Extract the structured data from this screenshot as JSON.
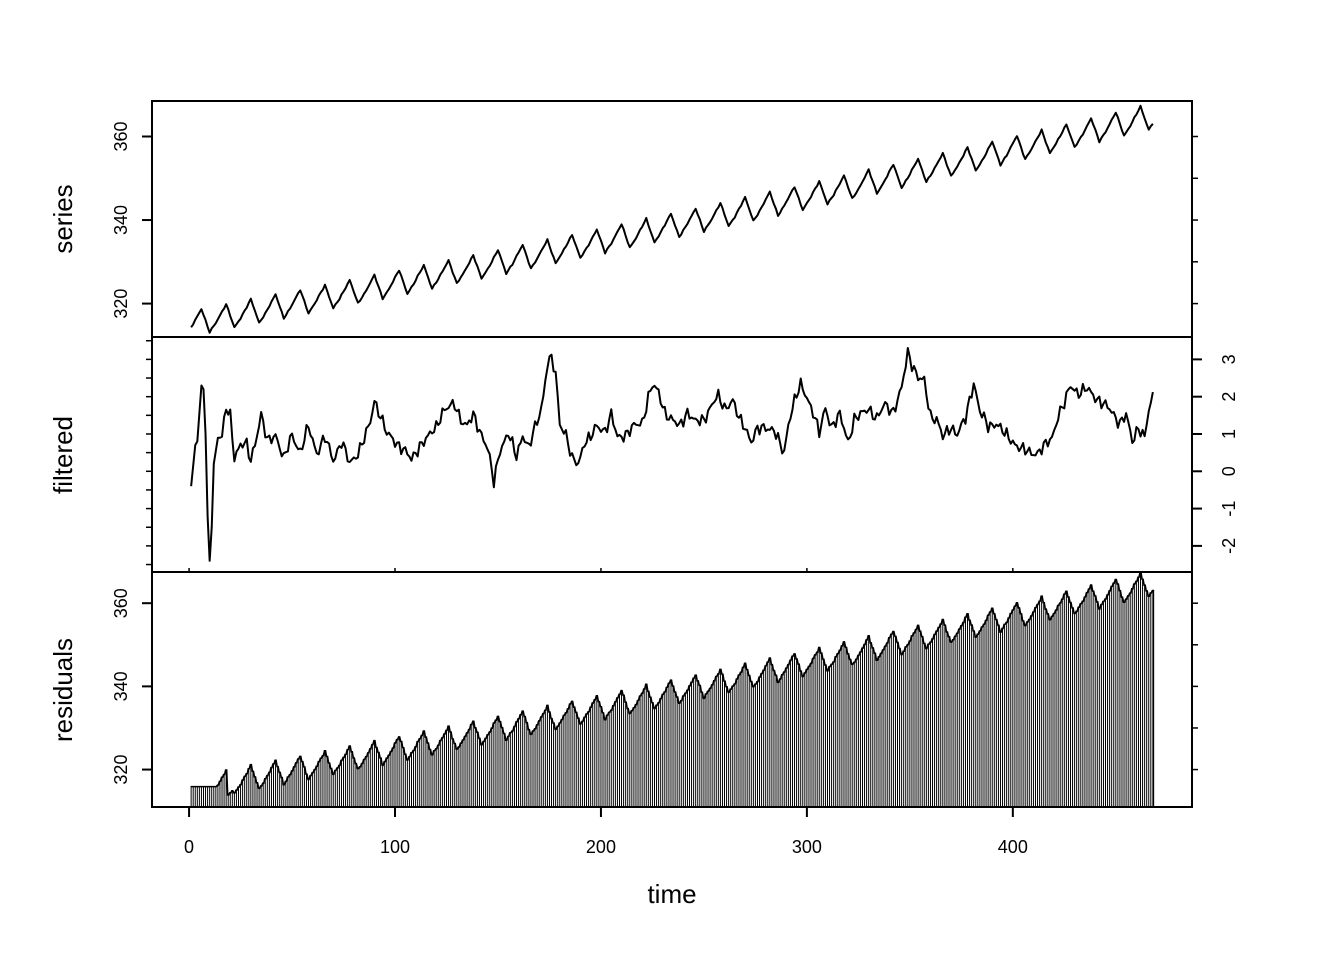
{
  "chart_data": {
    "type": "line",
    "x_axis": {
      "label": "time",
      "ticks": [
        0,
        100,
        200,
        300,
        400
      ],
      "tick_labels": [
        "0",
        "100",
        "200",
        "300",
        "400"
      ],
      "range": [
        -18,
        487
      ]
    },
    "panels": [
      {
        "name": "series",
        "ylabel": "series",
        "render": "line",
        "axis_side": "left",
        "ylim": [
          312,
          368.5
        ],
        "yticks": [
          320,
          340,
          360
        ],
        "ytick_labels": [
          "320",
          "340",
          "360"
        ],
        "start": 315.4,
        "end": 365.0,
        "trend_curvature": 6.0,
        "seasonal_amplitude": 2.9,
        "period": 12,
        "n": 468
      },
      {
        "name": "filtered",
        "ylabel": "filtered",
        "render": "line",
        "axis_side": "right",
        "ylim": [
          -2.7,
          3.6
        ],
        "yticks": [
          -2,
          -1,
          0,
          1,
          2,
          3
        ],
        "ytick_labels": [
          "-2",
          "-1",
          "0",
          "1",
          "2",
          "3"
        ],
        "n": 468,
        "anchors": [
          [
            1,
            -0.4
          ],
          [
            3,
            0.7
          ],
          [
            4,
            0.8
          ],
          [
            6,
            2.3
          ],
          [
            7,
            2.2
          ],
          [
            8,
            1.0
          ],
          [
            9,
            -1.2
          ],
          [
            10,
            -2.4
          ],
          [
            11,
            -1.5
          ],
          [
            12,
            0.2
          ],
          [
            14,
            0.9
          ],
          [
            16,
            0.9
          ],
          [
            18,
            1.7
          ],
          [
            20,
            1.5
          ],
          [
            22,
            0.4
          ],
          [
            25,
            0.7
          ],
          [
            28,
            0.7
          ],
          [
            30,
            0.3
          ],
          [
            33,
            1.0
          ],
          [
            35,
            1.5
          ],
          [
            38,
            0.8
          ],
          [
            42,
            1.0
          ],
          [
            46,
            0.3
          ],
          [
            50,
            1.0
          ],
          [
            54,
            0.5
          ],
          [
            58,
            1.2
          ],
          [
            62,
            0.5
          ],
          [
            66,
            0.9
          ],
          [
            70,
            0.3
          ],
          [
            74,
            0.8
          ],
          [
            78,
            0.2
          ],
          [
            82,
            0.5
          ],
          [
            86,
            1.0
          ],
          [
            88,
            1.3
          ],
          [
            90,
            1.9
          ],
          [
            93,
            1.5
          ],
          [
            96,
            1.0
          ],
          [
            100,
            0.8
          ],
          [
            104,
            0.6
          ],
          [
            108,
            0.3
          ],
          [
            112,
            0.7
          ],
          [
            116,
            0.9
          ],
          [
            120,
            1.2
          ],
          [
            123,
            1.6
          ],
          [
            126,
            1.7
          ],
          [
            129,
            1.8
          ],
          [
            132,
            1.4
          ],
          [
            135,
            1.2
          ],
          [
            138,
            1.5
          ],
          [
            142,
            1.0
          ],
          [
            145,
            0.6
          ],
          [
            148,
            -0.3
          ],
          [
            151,
            0.6
          ],
          [
            155,
            1.0
          ],
          [
            159,
            0.4
          ],
          [
            162,
            1.0
          ],
          [
            165,
            0.6
          ],
          [
            167,
            1.0
          ],
          [
            170,
            1.5
          ],
          [
            172,
            2.0
          ],
          [
            174,
            2.9
          ],
          [
            176,
            3.0
          ],
          [
            178,
            2.6
          ],
          [
            180,
            1.3
          ],
          [
            183,
            1.0
          ],
          [
            186,
            0.3
          ],
          [
            189,
            0.2
          ],
          [
            192,
            0.8
          ],
          [
            195,
            0.9
          ],
          [
            198,
            1.2
          ],
          [
            202,
            1.1
          ],
          [
            205,
            1.5
          ],
          [
            208,
            0.9
          ],
          [
            212,
            1.0
          ],
          [
            216,
            1.2
          ],
          [
            220,
            1.3
          ],
          [
            223,
            2.0
          ],
          [
            225,
            2.3
          ],
          [
            228,
            2.1
          ],
          [
            231,
            1.6
          ],
          [
            234,
            1.4
          ],
          [
            238,
            1.2
          ],
          [
            242,
            1.6
          ],
          [
            246,
            1.3
          ],
          [
            250,
            1.4
          ],
          [
            254,
            1.8
          ],
          [
            257,
            2.0
          ],
          [
            260,
            1.7
          ],
          [
            264,
            1.9
          ],
          [
            267,
            1.4
          ],
          [
            270,
            1.2
          ],
          [
            273,
            0.8
          ],
          [
            276,
            1.1
          ],
          [
            280,
            1.2
          ],
          [
            284,
            1.1
          ],
          [
            287,
            0.7
          ],
          [
            289,
            0.5
          ],
          [
            291,
            1.3
          ],
          [
            294,
            1.9
          ],
          [
            297,
            2.3
          ],
          [
            300,
            2.0
          ],
          [
            303,
            1.6
          ],
          [
            306,
            1.0
          ],
          [
            309,
            1.7
          ],
          [
            312,
            1.2
          ],
          [
            316,
            1.5
          ],
          [
            320,
            0.8
          ],
          [
            323,
            1.4
          ],
          [
            326,
            1.5
          ],
          [
            330,
            1.7
          ],
          [
            334,
            1.4
          ],
          [
            338,
            1.8
          ],
          [
            342,
            1.6
          ],
          [
            346,
            2.2
          ],
          [
            349,
            3.2
          ],
          [
            351,
            2.9
          ],
          [
            354,
            2.5
          ],
          [
            357,
            2.4
          ],
          [
            360,
            1.5
          ],
          [
            363,
            1.4
          ],
          [
            366,
            0.9
          ],
          [
            370,
            1.2
          ],
          [
            373,
            1.0
          ],
          [
            377,
            1.4
          ],
          [
            381,
            2.4
          ],
          [
            384,
            1.6
          ],
          [
            388,
            1.2
          ],
          [
            392,
            1.3
          ],
          [
            396,
            1.0
          ],
          [
            400,
            0.8
          ],
          [
            404,
            0.6
          ],
          [
            408,
            0.5
          ],
          [
            412,
            0.5
          ],
          [
            416,
            0.7
          ],
          [
            419,
            0.9
          ],
          [
            422,
            1.5
          ],
          [
            425,
            1.8
          ],
          [
            428,
            2.3
          ],
          [
            432,
            2.1
          ],
          [
            436,
            2.2
          ],
          [
            440,
            2.0
          ],
          [
            444,
            1.8
          ],
          [
            448,
            1.6
          ],
          [
            452,
            1.3
          ],
          [
            455,
            1.5
          ],
          [
            458,
            0.8
          ],
          [
            461,
            1.2
          ],
          [
            464,
            0.9
          ],
          [
            466,
            1.6
          ],
          [
            468,
            2.0
          ]
        ]
      },
      {
        "name": "residuals",
        "ylabel": "residuals",
        "render": "histogram",
        "axis_side": "left",
        "ylim": [
          311,
          367.5
        ],
        "yticks": [
          320,
          340,
          360
        ],
        "ytick_labels": [
          "320",
          "340",
          "360"
        ],
        "flat_until": 13,
        "flat_value": 315.9,
        "dip_start": 19,
        "dip_value": 313.9,
        "n": 468
      }
    ]
  }
}
